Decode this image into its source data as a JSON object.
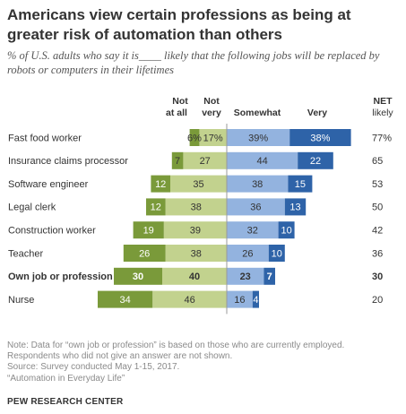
{
  "header": {
    "title": "Americans view certain professions as being at greater risk of automation than others",
    "subtitle": "% of U.S. adults who say it is____ likely that the following jobs will be replaced by robots or computers in their lifetimes"
  },
  "footer": {
    "note": "Note: Data for “own job or profession” is based on those who are currently employed.",
    "note2": "Respondents who did not give an answer are not shown.",
    "source": "Source: Survey conducted May 1-15, 2017.",
    "report": "“Automation in Everyday Life”",
    "brand": "PEW RESEARCH CENTER"
  },
  "chart_data": {
    "type": "bar",
    "subtype": "diverging-stacked",
    "column_headers": {
      "not_at_all": [
        "Not",
        "at all"
      ],
      "not_very": [
        "Not",
        "very"
      ],
      "somewhat": "Somewhat",
      "very": "Very",
      "net": [
        "NET",
        "likely"
      ]
    },
    "categories": [
      "Fast food worker",
      "Insurance claims processor",
      "Software engineer",
      "Legal clerk",
      "Construction worker",
      "Teacher",
      "Own job or profession",
      "Nurse"
    ],
    "bold_categories": [
      "Own job or profession"
    ],
    "series": [
      {
        "name": "Not at all",
        "color": "#7a9a3a",
        "side": "left",
        "values": [
          6,
          7,
          12,
          12,
          19,
          26,
          30,
          34
        ],
        "labels": [
          "6%",
          "7",
          "12",
          "12",
          "19",
          "26",
          "30",
          "34"
        ]
      },
      {
        "name": "Not very",
        "color": "#c2d28e",
        "side": "left",
        "values": [
          17,
          27,
          35,
          38,
          39,
          38,
          40,
          46
        ],
        "labels": [
          "17%",
          "27",
          "35",
          "38",
          "39",
          "38",
          "40",
          "46"
        ]
      },
      {
        "name": "Somewhat",
        "color": "#93b3df",
        "side": "right",
        "values": [
          39,
          44,
          38,
          36,
          32,
          26,
          23,
          16
        ],
        "labels": [
          "39%",
          "44",
          "38",
          "36",
          "32",
          "26",
          "23",
          "16"
        ]
      },
      {
        "name": "Very",
        "color": "#2e63a8",
        "side": "right",
        "values": [
          38,
          22,
          15,
          13,
          10,
          10,
          7,
          4
        ],
        "labels": [
          "38%",
          "22",
          "15",
          "13",
          "10",
          "10",
          "7",
          "4"
        ]
      }
    ],
    "net_likely": [
      77,
      65,
      53,
      50,
      42,
      36,
      30,
      20
    ],
    "net_labels": [
      "77%",
      "65",
      "53",
      "50",
      "42",
      "36",
      "30",
      "20"
    ],
    "divider_color": "#9a9a9a"
  }
}
